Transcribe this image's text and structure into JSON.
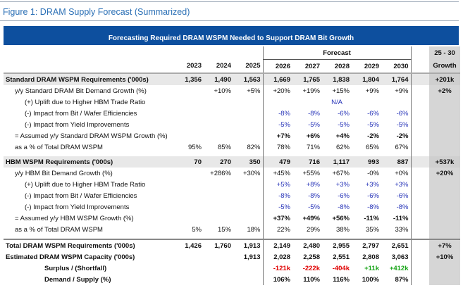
{
  "title": "Figure 1: DRAM Supply Forecast (Summarized)",
  "banner": "Forecasting Required DRAM WSPM Needed to Support DRAM Bit Growth",
  "table": {
    "header": {
      "forecast": "Forecast",
      "growth_top": "25 - 30",
      "growth_bottom": "Growth",
      "years": [
        "2023",
        "2024",
        "2025",
        "2026",
        "2027",
        "2028",
        "2029",
        "2030"
      ]
    },
    "rows": [
      [
        "Standard DRAM WSPM Requirements ('000s)",
        "1,356",
        "1,490",
        "1,563",
        "1,669",
        "1,765",
        "1,838",
        "1,804",
        "1,764",
        "+201k"
      ],
      [
        "y/y Standard DRAM Bit Demand Growth (%)",
        null,
        "+10%",
        "+5%",
        "+20%",
        "+19%",
        "+15%",
        "+9%",
        "+9%",
        "+2%"
      ],
      [
        "(+) Uplift due to Higher HBM Trade Ratio",
        null,
        null,
        null,
        null,
        null,
        "N/A",
        null,
        null,
        null
      ],
      [
        "(-) Impact from Bit / Wafer Efficiencies",
        null,
        null,
        null,
        "-8%",
        "-8%",
        "-6%",
        "-6%",
        "-6%",
        null
      ],
      [
        "(-) Impact from Yield Improvements",
        null,
        null,
        null,
        "-5%",
        "-5%",
        "-5%",
        "-5%",
        "-5%",
        null
      ],
      [
        "= Assumed y/y Standard DRAM WSPM Growth (%)",
        null,
        null,
        null,
        "+7%",
        "+6%",
        "+4%",
        "-2%",
        "-2%",
        null
      ],
      [
        "as a % of Total DRAM WSPM",
        "95%",
        "85%",
        "82%",
        "78%",
        "71%",
        "62%",
        "65%",
        "67%",
        null
      ],
      [
        "HBM WSPM Requirements ('000s)",
        "70",
        "270",
        "350",
        "479",
        "716",
        "1,117",
        "993",
        "887",
        "+537k"
      ],
      [
        "y/y HBM Bit Demand Growth (%)",
        null,
        "+286%",
        "+30%",
        "+45%",
        "+55%",
        "+67%",
        "-0%",
        "+0%",
        "+20%"
      ],
      [
        "(+) Uplift due to Higher HBM Trade Ratio",
        null,
        null,
        null,
        "+5%",
        "+8%",
        "+3%",
        "+3%",
        "+3%",
        null
      ],
      [
        "(-) Impact from Bit / Wafer Efficiencies",
        null,
        null,
        null,
        "-8%",
        "-8%",
        "-6%",
        "-6%",
        "-6%",
        null
      ],
      [
        "(-) Impact from Yield Improvements",
        null,
        null,
        null,
        "-5%",
        "-5%",
        "-8%",
        "-8%",
        "-8%",
        null
      ],
      [
        "= Assumed y/y HBM WSPM Growth (%)",
        null,
        null,
        null,
        "+37%",
        "+49%",
        "+56%",
        "-11%",
        "-11%",
        null
      ],
      [
        "as a % of Total DRAM WSPM",
        "5%",
        "15%",
        "18%",
        "22%",
        "29%",
        "38%",
        "35%",
        "33%",
        null
      ],
      [
        "Total DRAM WSPM Requirements ('000s)",
        "1,426",
        "1,760",
        "1,913",
        "2,149",
        "2,480",
        "2,955",
        "2,797",
        "2,651",
        "+7%"
      ],
      [
        "Estimated DRAM WSPM Capacity ('000s)",
        null,
        null,
        "1,913",
        "2,028",
        "2,258",
        "2,551",
        "2,808",
        "3,063",
        "+10%"
      ],
      [
        "Surplus / (Shortfall)",
        null,
        null,
        null,
        "-121k",
        "-222k",
        "-404k",
        "+11k",
        "+412k",
        null
      ],
      [
        "Demand / Supply (%)",
        null,
        null,
        null,
        "106%",
        "110%",
        "116%",
        "100%",
        "87%",
        null
      ]
    ]
  }
}
